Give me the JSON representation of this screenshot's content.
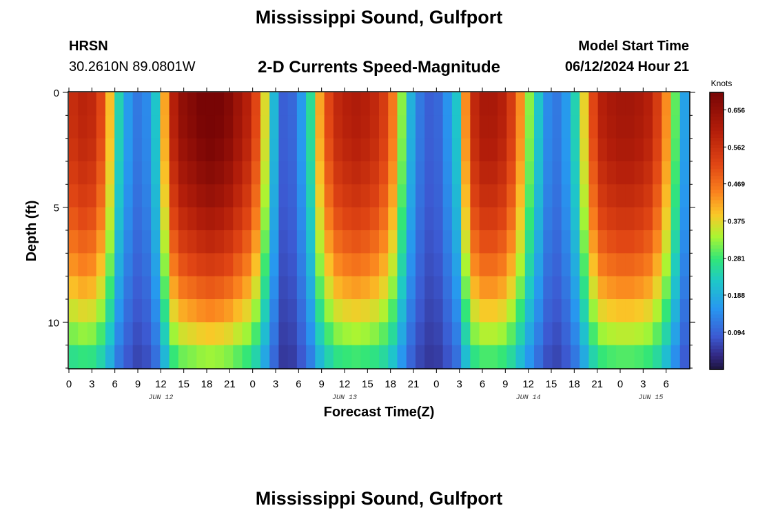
{
  "header": {
    "title": "Mississippi Sound, Gulfport",
    "station": "HRSN",
    "coordinates": "30.2610N  89.0801W",
    "subtitle": "2-D Currents Speed-Magnitude",
    "model_start_label": "Model Start Time",
    "model_start_value": "06/12/2024 Hour 21",
    "footer_title": "Mississippi Sound, Gulfport"
  },
  "chart_data": {
    "type": "heatmap",
    "title": "2-D Currents Speed-Magnitude",
    "xlabel": "Forecast Time(Z)",
    "ylabel": "Depth (ft)",
    "x_hours_from_jun12_00": [
      0,
      81
    ],
    "xlim_hours": [
      0,
      81
    ],
    "ylim_ft": [
      0,
      12
    ],
    "y_ticks": [
      "0",
      "5",
      "10"
    ],
    "x_tick_labels": [
      "0",
      "3",
      "6",
      "9",
      "12",
      "15",
      "18",
      "21",
      "0",
      "3",
      "6",
      "9",
      "12",
      "15",
      "18",
      "21",
      "0",
      "3",
      "6",
      "9",
      "12",
      "15",
      "18",
      "21",
      "0",
      "3",
      "6"
    ],
    "date_labels": [
      {
        "label": "JUN 12",
        "hour": 12
      },
      {
        "label": "JUN 13",
        "hour": 36
      },
      {
        "label": "JUN 14",
        "hour": 60
      },
      {
        "label": "JUN 15",
        "hour": 76
      }
    ],
    "colorbar": {
      "unit": "Knots",
      "min": 0.0,
      "max": 0.7,
      "ticks": [
        "0.656",
        "0.562",
        "0.469",
        "0.375",
        "0.281",
        "0.188",
        "0.094"
      ]
    },
    "depth_levels": 12,
    "surface_speed_knots": [
      0.55,
      0.57,
      0.56,
      0.5,
      0.38,
      0.22,
      0.14,
      0.1,
      0.12,
      0.2,
      0.4,
      0.58,
      0.64,
      0.66,
      0.68,
      0.69,
      0.68,
      0.66,
      0.62,
      0.58,
      0.5,
      0.35,
      0.18,
      0.07,
      0.08,
      0.14,
      0.24,
      0.4,
      0.5,
      0.56,
      0.58,
      0.59,
      0.58,
      0.56,
      0.52,
      0.44,
      0.3,
      0.17,
      0.1,
      0.07,
      0.08,
      0.13,
      0.2,
      0.42,
      0.56,
      0.6,
      0.6,
      0.58,
      0.52,
      0.42,
      0.3,
      0.2,
      0.12,
      0.1,
      0.14,
      0.22,
      0.36,
      0.5,
      0.58,
      0.6,
      0.61,
      0.61,
      0.6,
      0.58,
      0.52,
      0.42,
      0.28,
      0.15
    ]
  }
}
